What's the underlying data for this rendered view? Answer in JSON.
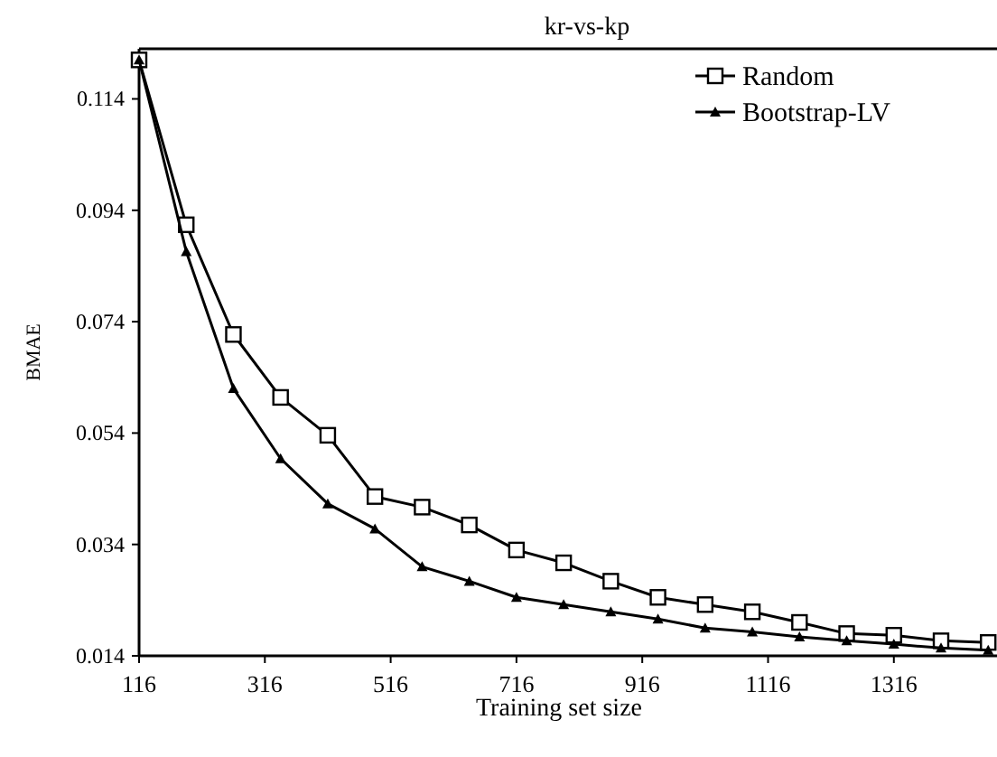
{
  "chart_data": {
    "type": "line",
    "title": "kr-vs-kp",
    "xlabel": "Training set size",
    "ylabel": "BMAE",
    "x": [
      116,
      191,
      266,
      341,
      416,
      491,
      566,
      641,
      716,
      791,
      866,
      941,
      1016,
      1091,
      1166,
      1241,
      1316,
      1391,
      1466
    ],
    "xlim": [
      116,
      1480
    ],
    "xticks": [
      116,
      316,
      516,
      716,
      916,
      1116,
      1316
    ],
    "ylim": [
      0.014,
      0.123
    ],
    "yticks": [
      0.014,
      0.034,
      0.054,
      0.074,
      0.094,
      0.114
    ],
    "legend": "top right",
    "grid": false,
    "series": [
      {
        "name": "Random",
        "color": "#000000",
        "marker": "square",
        "values": [
          0.121,
          0.0914,
          0.0717,
          0.0604,
          0.0536,
          0.0426,
          0.0407,
          0.0375,
          0.033,
          0.0307,
          0.0274,
          0.0245,
          0.0232,
          0.0219,
          0.02,
          0.018,
          0.0177,
          0.0167,
          0.0164
        ]
      },
      {
        "name": "Bootstrap-LV",
        "color": "#000000",
        "marker": "triangle",
        "values": [
          0.121,
          0.0866,
          0.062,
          0.0494,
          0.0413,
          0.0368,
          0.03,
          0.0274,
          0.0245,
          0.0232,
          0.0219,
          0.0206,
          0.019,
          0.0183,
          0.0174,
          0.0167,
          0.0161,
          0.0154,
          0.015
        ]
      }
    ]
  }
}
